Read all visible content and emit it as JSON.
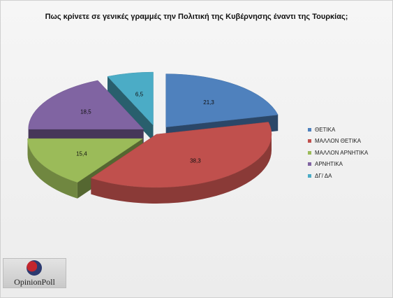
{
  "logo": {
    "text": "OpinionPoll"
  },
  "chart_data": {
    "type": "pie",
    "title": "Πως κρίνετε σε γενικές γραμμές την Πολιτική της Κυβέρνησης έναντι της Τουρκίας;",
    "legend_position": "right",
    "categories": [
      "ΘΕΤΙΚΑ",
      "ΜΑΛΛΟΝ ΘΕΤΙΚΑ",
      "ΜΑΛΛΟΝ ΑΡΝΗΤΙΚΑ",
      "ΑΡΝΗΤΙΚΑ",
      "ΔΓ/ ΔΑ"
    ],
    "values": [
      21.3,
      38.3,
      15.4,
      18.5,
      6.5
    ],
    "value_labels": [
      "21,3",
      "38,3",
      "15,4",
      "18,5",
      "6,5"
    ],
    "colors": [
      "#4f81bd",
      "#c0504d",
      "#9bbb59",
      "#8064a2",
      "#4bacc6"
    ],
    "exploded": true,
    "three_d": true
  }
}
